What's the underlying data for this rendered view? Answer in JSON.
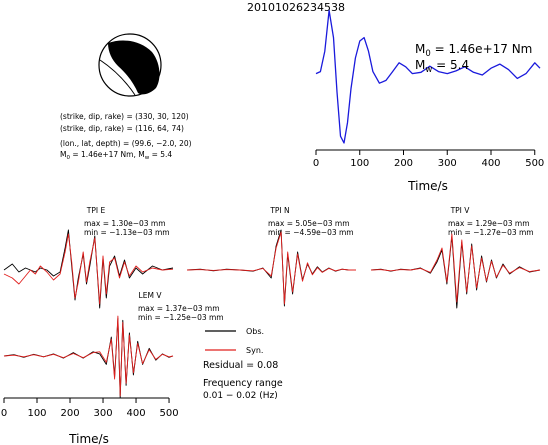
{
  "figure": {
    "title": "20101026234538",
    "mechanism_lines": [
      "(strike, dip, rake) = (330, 30, 120)",
      "(strike, dip, rake) = (116, 64, 74)",
      "(lon., lat, depth) = (99.6, −2.0, 20)"
    ],
    "moment_line": {
      "m0": "M",
      "m0_sub": "0",
      "m0_rest": " = 1.46e+17 Nm, M",
      "mw_sub": "w",
      "mw_rest": " = 5.4"
    },
    "stf": {
      "m0_label": "M",
      "m0_sub": "0",
      "m0_value": " = 1.46e+17 Nm",
      "mw_label": "M",
      "mw_sub": "w",
      "mw_value": " = 5.4"
    },
    "legend": {
      "obs": "Obs.",
      "syn": "Syn.",
      "residual": "Residual = 0.08",
      "freq_title": "Frequency range",
      "freq_value": "0.01 − 0.02 (Hz)"
    },
    "colors": {
      "observed": "#000000",
      "synthetic": "#e0201e",
      "stf": "#1a1adc",
      "beachball": "#000000"
    }
  },
  "chart_data": [
    {
      "type": "line",
      "name": "source-time-function",
      "xlabel": "Time/s",
      "xlim": [
        0,
        512
      ],
      "xticks": [
        0,
        100,
        200,
        300,
        400,
        500
      ],
      "grid": false,
      "series": [
        {
          "name": "",
          "x": [
            0,
            10,
            20,
            30,
            40,
            48,
            56,
            64,
            72,
            80,
            90,
            100,
            110,
            120,
            130,
            145,
            160,
            175,
            190,
            205,
            220,
            240,
            260,
            280,
            300,
            320,
            340,
            360,
            380,
            400,
            420,
            440,
            460,
            480,
            500,
            512
          ],
          "values": [
            0.02,
            0.05,
            0.35,
            0.95,
            0.55,
            -0.25,
            -0.9,
            -1.0,
            -0.7,
            -0.2,
            0.25,
            0.5,
            0.55,
            0.35,
            0.05,
            -0.12,
            -0.08,
            0.05,
            0.18,
            0.12,
            0.02,
            0.04,
            0.13,
            0.05,
            0.02,
            0.06,
            0.12,
            0.04,
            0.0,
            0.1,
            0.16,
            0.08,
            -0.05,
            0.02,
            0.18,
            0.1
          ]
        }
      ]
    },
    {
      "type": "line",
      "station": "TPI E",
      "max": "max = 1.30e−03 mm",
      "min": "min = −1.13e−03 mm",
      "series": [
        {
          "name": "Obs.",
          "x": [
            0,
            25,
            45,
            65,
            80,
            95,
            110,
            130,
            150,
            170,
            185,
            195,
            205,
            215,
            225,
            240,
            250,
            260,
            275,
            290,
            300,
            310,
            320,
            335,
            350,
            365,
            380,
            400,
            420,
            450,
            480,
            512
          ],
          "values": [
            0.0,
            0.15,
            -0.05,
            0.05,
            0.0,
            -0.05,
            0.05,
            0.0,
            -0.15,
            -0.05,
            0.55,
            1.0,
            0.1,
            -0.75,
            -0.2,
            0.4,
            -0.35,
            0.1,
            0.85,
            -0.95,
            0.3,
            -0.7,
            0.1,
            0.35,
            -0.15,
            0.25,
            -0.2,
            0.05,
            -0.1,
            0.1,
            0.0,
            0.05
          ]
        },
        {
          "name": "Syn.",
          "x": [
            0,
            25,
            45,
            65,
            80,
            95,
            110,
            130,
            150,
            170,
            185,
            195,
            205,
            215,
            225,
            240,
            250,
            260,
            275,
            290,
            300,
            310,
            320,
            335,
            350,
            365,
            380,
            400,
            420,
            450,
            480,
            512
          ],
          "values": [
            -0.1,
            -0.2,
            -0.35,
            -0.15,
            0.0,
            -0.1,
            0.1,
            -0.05,
            -0.25,
            -0.1,
            0.45,
            0.9,
            0.2,
            -0.7,
            -0.3,
            0.45,
            -0.3,
            0.2,
            0.8,
            -0.85,
            0.35,
            -0.6,
            0.2,
            0.3,
            -0.2,
            0.2,
            -0.15,
            0.1,
            -0.05,
            0.05,
            0.0,
            0.02
          ]
        }
      ]
    },
    {
      "type": "line",
      "station": "TPI N",
      "max": "max = 5.05e−03 mm",
      "min": "min = −4.59e−03 mm",
      "series": [
        {
          "name": "Obs.",
          "x": [
            0,
            40,
            80,
            120,
            160,
            200,
            230,
            255,
            270,
            285,
            295,
            305,
            320,
            335,
            350,
            365,
            380,
            395,
            410,
            430,
            450,
            470,
            490,
            512
          ],
          "values": [
            0.0,
            0.02,
            -0.02,
            0.02,
            0.0,
            -0.03,
            0.05,
            -0.2,
            0.6,
            1.0,
            -0.9,
            0.4,
            -0.6,
            0.45,
            -0.25,
            0.15,
            -0.1,
            0.08,
            -0.05,
            0.05,
            -0.03,
            0.02,
            0.0,
            0.0
          ]
        },
        {
          "name": "Syn.",
          "x": [
            0,
            40,
            80,
            120,
            160,
            200,
            230,
            255,
            270,
            285,
            295,
            305,
            320,
            335,
            350,
            365,
            380,
            395,
            410,
            430,
            450,
            470,
            490,
            512
          ],
          "values": [
            0.0,
            0.01,
            -0.01,
            0.01,
            0.0,
            -0.02,
            0.04,
            -0.15,
            0.55,
            0.95,
            -0.85,
            0.45,
            -0.55,
            0.4,
            -0.28,
            0.18,
            -0.12,
            0.06,
            -0.06,
            0.04,
            -0.02,
            0.02,
            0.0,
            0.0
          ]
        }
      ]
    },
    {
      "type": "line",
      "station": "TPI V",
      "max": "max = 1.29e−03 mm",
      "min": "min = −1.27e−03 mm",
      "series": [
        {
          "name": "Obs.",
          "x": [
            0,
            30,
            60,
            90,
            120,
            150,
            180,
            200,
            215,
            230,
            245,
            260,
            275,
            290,
            305,
            320,
            335,
            350,
            365,
            380,
            400,
            420,
            450,
            480,
            512
          ],
          "values": [
            0.0,
            0.02,
            -0.03,
            0.02,
            0.0,
            0.05,
            -0.08,
            0.2,
            0.5,
            -0.35,
            0.85,
            -0.95,
            0.7,
            -0.6,
            0.65,
            -0.5,
            0.35,
            -0.3,
            0.25,
            -0.2,
            0.15,
            -0.1,
            0.08,
            -0.05,
            0.0
          ]
        },
        {
          "name": "Syn.",
          "x": [
            0,
            30,
            60,
            90,
            120,
            150,
            180,
            200,
            215,
            230,
            245,
            260,
            275,
            290,
            305,
            320,
            335,
            350,
            365,
            380,
            400,
            420,
            450,
            480,
            512
          ],
          "values": [
            0.0,
            0.01,
            -0.02,
            0.01,
            0.0,
            0.04,
            -0.06,
            0.25,
            0.55,
            -0.3,
            0.9,
            -0.8,
            0.75,
            -0.55,
            0.6,
            -0.45,
            0.3,
            -0.28,
            0.22,
            -0.18,
            0.12,
            -0.08,
            0.06,
            -0.04,
            0.0
          ]
        }
      ]
    },
    {
      "type": "line",
      "station": "LEM V",
      "max": "max = 1.37e−03 mm",
      "min": "min = −1.25e−03 mm",
      "xlabel": "Time/s",
      "xlim": [
        0,
        512
      ],
      "xticks": [
        0,
        100,
        200,
        300,
        400,
        500
      ],
      "series": [
        {
          "name": "Obs.",
          "x": [
            0,
            30,
            60,
            90,
            120,
            150,
            180,
            210,
            240,
            270,
            290,
            310,
            325,
            335,
            345,
            352,
            360,
            370,
            380,
            392,
            405,
            420,
            440,
            460,
            480,
            500,
            512
          ],
          "values": [
            0.0,
            0.03,
            -0.03,
            0.04,
            -0.02,
            0.05,
            -0.05,
            0.08,
            -0.05,
            0.1,
            0.05,
            -0.2,
            0.45,
            -0.5,
            0.9,
            -1.0,
            0.85,
            -0.7,
            0.55,
            -0.45,
            0.35,
            -0.2,
            0.18,
            -0.1,
            0.05,
            -0.03,
            0.0
          ]
        },
        {
          "name": "Syn.",
          "x": [
            0,
            30,
            60,
            90,
            120,
            150,
            180,
            210,
            240,
            270,
            290,
            310,
            325,
            335,
            345,
            352,
            360,
            370,
            380,
            392,
            405,
            420,
            440,
            460,
            480,
            500,
            512
          ],
          "values": [
            0.0,
            0.02,
            -0.02,
            0.03,
            -0.02,
            0.04,
            -0.04,
            0.06,
            -0.04,
            0.08,
            0.1,
            -0.15,
            0.4,
            -0.55,
            0.95,
            -0.95,
            0.8,
            -0.65,
            0.5,
            -0.4,
            0.3,
            -0.18,
            0.15,
            -0.08,
            0.04,
            -0.02,
            0.0
          ]
        }
      ]
    }
  ]
}
